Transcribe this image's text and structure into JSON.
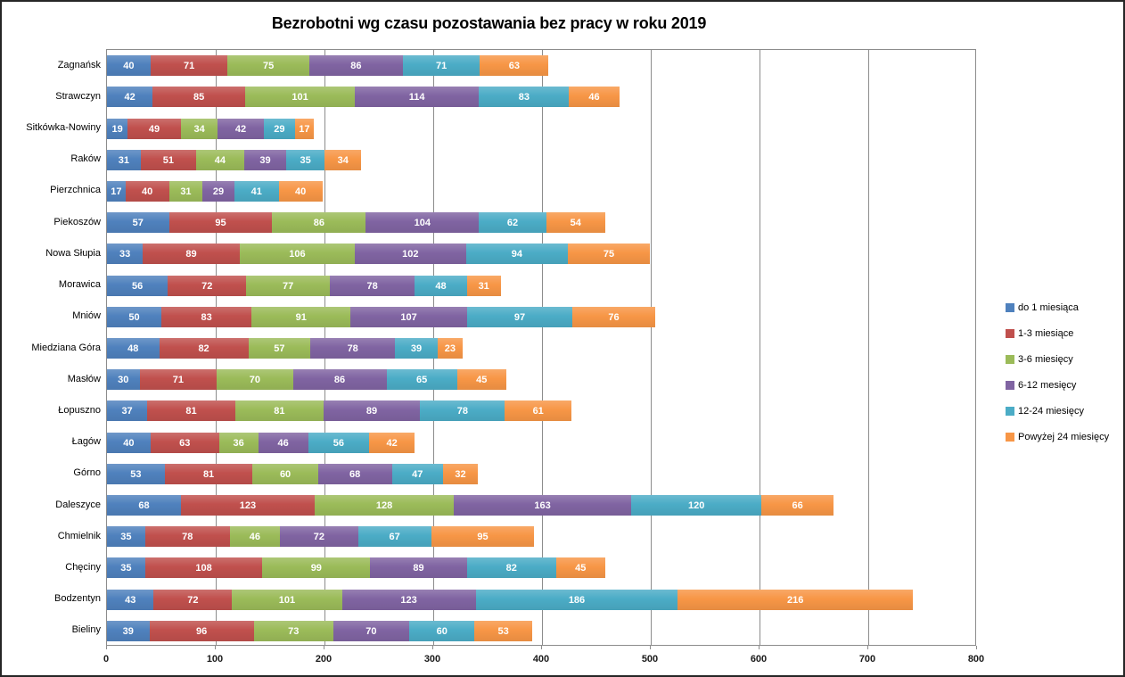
{
  "chart_data": {
    "type": "bar",
    "orientation": "horizontal",
    "stacked": true,
    "title": "Bezrobotni wg czasu pozostawania bez pracy w roku 2019",
    "categories": [
      "Zagnańsk",
      "Strawczyn",
      "Sitkówka-Nowiny",
      "Raków",
      "Pierzchnica",
      "Piekoszów",
      "Nowa Słupia",
      "Morawica",
      "Mniów",
      "Miedziana Góra",
      "Masłów",
      "Łopuszno",
      "Łagów",
      "Górno",
      "Daleszyce",
      "Chmielnik",
      "Chęciny",
      "Bodzentyn",
      "Bieliny"
    ],
    "series": [
      {
        "name": "do 1 miesiąca",
        "color": "#4F81BD",
        "values": [
          40,
          42,
          19,
          31,
          17,
          57,
          33,
          56,
          50,
          48,
          30,
          37,
          40,
          53,
          68,
          35,
          35,
          43,
          39
        ]
      },
      {
        "name": "1-3 miesiące",
        "color": "#C0504D",
        "values": [
          71,
          85,
          49,
          51,
          40,
          95,
          89,
          72,
          83,
          82,
          71,
          81,
          63,
          81,
          123,
          78,
          108,
          72,
          96
        ]
      },
      {
        "name": "3-6 miesięcy",
        "color": "#9BBB59",
        "values": [
          75,
          101,
          34,
          44,
          31,
          86,
          106,
          77,
          91,
          57,
          70,
          81,
          36,
          60,
          128,
          46,
          99,
          101,
          73
        ]
      },
      {
        "name": "6-12 mesięcy",
        "color": "#8064A2",
        "values": [
          86,
          114,
          42,
          39,
          29,
          104,
          102,
          78,
          107,
          78,
          86,
          89,
          46,
          68,
          163,
          72,
          89,
          123,
          70
        ]
      },
      {
        "name": "12-24 miesięcy",
        "color": "#4BACC6",
        "values": [
          71,
          83,
          29,
          35,
          41,
          62,
          94,
          48,
          97,
          39,
          65,
          78,
          56,
          47,
          120,
          67,
          82,
          186,
          60
        ]
      },
      {
        "name": "Powyżej 24 miesięcy",
        "color": "#F79646",
        "values": [
          63,
          46,
          17,
          34,
          40,
          54,
          75,
          31,
          76,
          23,
          45,
          61,
          42,
          32,
          66,
          95,
          45,
          216,
          53
        ]
      }
    ],
    "x_axis": {
      "min": 0,
      "max": 800,
      "tick_interval": 100,
      "tick_labels": [
        "0",
        "100",
        "200",
        "300",
        "400",
        "500",
        "600",
        "700",
        "800"
      ]
    },
    "grid": true,
    "legend_position": "right",
    "data_labels": true,
    "gridline_color": "#8C8C8C",
    "label_text_color": "#ffffff"
  }
}
